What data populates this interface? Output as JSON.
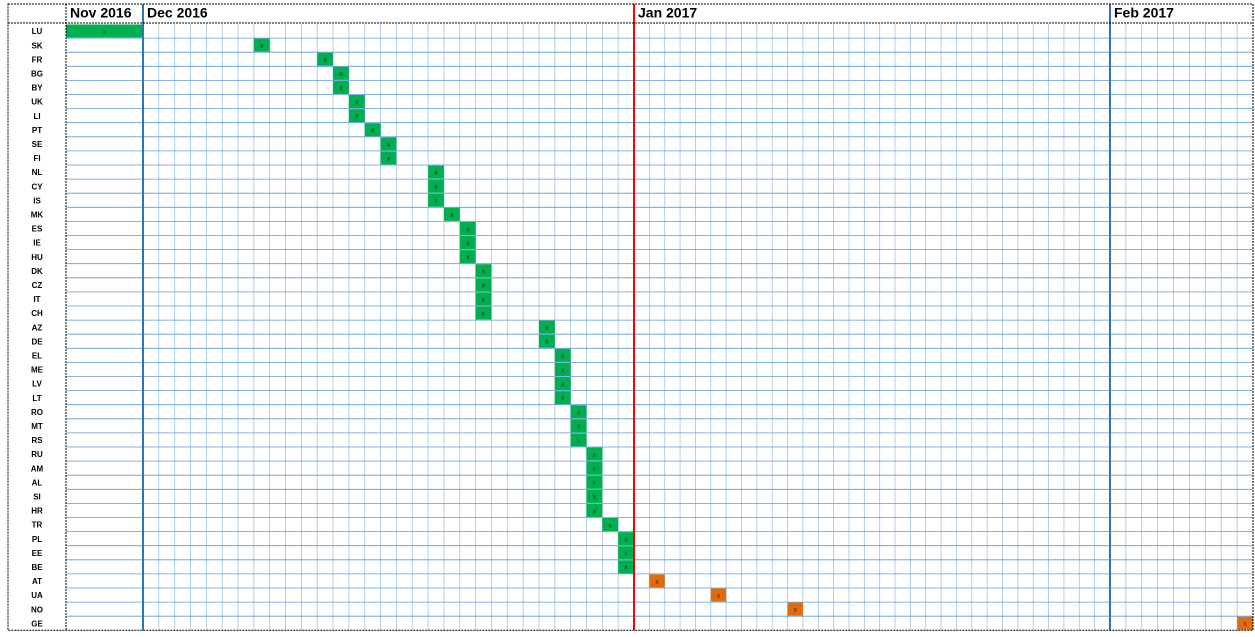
{
  "marker": "x",
  "months": [
    {
      "label": "Nov 2016",
      "days": 1
    },
    {
      "label": "Dec 2016",
      "days": 31
    },
    {
      "label": "Jan 2017",
      "days": 31
    },
    {
      "label": "Feb 2017",
      "days": 9
    }
  ],
  "rows": [
    {
      "code": "LU",
      "month": 0,
      "day": 1,
      "color": "#00b050"
    },
    {
      "code": "SK",
      "month": 1,
      "day": 8,
      "color": "#00b050"
    },
    {
      "code": "FR",
      "month": 1,
      "day": 12,
      "color": "#00b050"
    },
    {
      "code": "BG",
      "month": 1,
      "day": 13,
      "color": "#00b050"
    },
    {
      "code": "BY",
      "month": 1,
      "day": 13,
      "color": "#00b050"
    },
    {
      "code": "UK",
      "month": 1,
      "day": 14,
      "color": "#00b050"
    },
    {
      "code": "LI",
      "month": 1,
      "day": 14,
      "color": "#00b050"
    },
    {
      "code": "PT",
      "month": 1,
      "day": 15,
      "color": "#00b050"
    },
    {
      "code": "SE",
      "month": 1,
      "day": 16,
      "color": "#00b050"
    },
    {
      "code": "FI",
      "month": 1,
      "day": 16,
      "color": "#00b050"
    },
    {
      "code": "NL",
      "month": 1,
      "day": 19,
      "color": "#00b050"
    },
    {
      "code": "CY",
      "month": 1,
      "day": 19,
      "color": "#00b050"
    },
    {
      "code": "IS",
      "month": 1,
      "day": 19,
      "color": "#00b050"
    },
    {
      "code": "MK",
      "month": 1,
      "day": 20,
      "color": "#00b050"
    },
    {
      "code": "ES",
      "month": 1,
      "day": 21,
      "color": "#00b050"
    },
    {
      "code": "IE",
      "month": 1,
      "day": 21,
      "color": "#00b050"
    },
    {
      "code": "HU",
      "month": 1,
      "day": 21,
      "color": "#00b050"
    },
    {
      "code": "DK",
      "month": 1,
      "day": 22,
      "color": "#00b050"
    },
    {
      "code": "CZ",
      "month": 1,
      "day": 22,
      "color": "#00b050"
    },
    {
      "code": "IT",
      "month": 1,
      "day": 22,
      "color": "#00b050"
    },
    {
      "code": "CH",
      "month": 1,
      "day": 22,
      "color": "#00b050"
    },
    {
      "code": "AZ",
      "month": 1,
      "day": 26,
      "color": "#00b050"
    },
    {
      "code": "DE",
      "month": 1,
      "day": 26,
      "color": "#00b050"
    },
    {
      "code": "EL",
      "month": 1,
      "day": 27,
      "color": "#00b050"
    },
    {
      "code": "ME",
      "month": 1,
      "day": 27,
      "color": "#00b050"
    },
    {
      "code": "LV",
      "month": 1,
      "day": 27,
      "color": "#00b050"
    },
    {
      "code": "LT",
      "month": 1,
      "day": 27,
      "color": "#00b050"
    },
    {
      "code": "RO",
      "month": 1,
      "day": 28,
      "color": "#00b050"
    },
    {
      "code": "MT",
      "month": 1,
      "day": 28,
      "color": "#00b050"
    },
    {
      "code": "RS",
      "month": 1,
      "day": 28,
      "color": "#00b050"
    },
    {
      "code": "RU",
      "month": 1,
      "day": 29,
      "color": "#00b050"
    },
    {
      "code": "AM",
      "month": 1,
      "day": 29,
      "color": "#00b050"
    },
    {
      "code": "AL",
      "month": 1,
      "day": 29,
      "color": "#00b050"
    },
    {
      "code": "SI",
      "month": 1,
      "day": 29,
      "color": "#00b050"
    },
    {
      "code": "HR",
      "month": 1,
      "day": 29,
      "color": "#00b050"
    },
    {
      "code": "TR",
      "month": 1,
      "day": 30,
      "color": "#00b050"
    },
    {
      "code": "PL",
      "month": 1,
      "day": 31,
      "color": "#00b050"
    },
    {
      "code": "EE",
      "month": 1,
      "day": 31,
      "color": "#00b050"
    },
    {
      "code": "BE",
      "month": 1,
      "day": 31,
      "color": "#00b050"
    },
    {
      "code": "AT",
      "month": 2,
      "day": 2,
      "color": "#e26b0a"
    },
    {
      "code": "UA",
      "month": 2,
      "day": 6,
      "color": "#e26b0a"
    },
    {
      "code": "NO",
      "month": 2,
      "day": 11,
      "color": "#e26b0a"
    },
    {
      "code": "GE",
      "month": 3,
      "day": 9,
      "color": "#e26b0a"
    }
  ]
}
